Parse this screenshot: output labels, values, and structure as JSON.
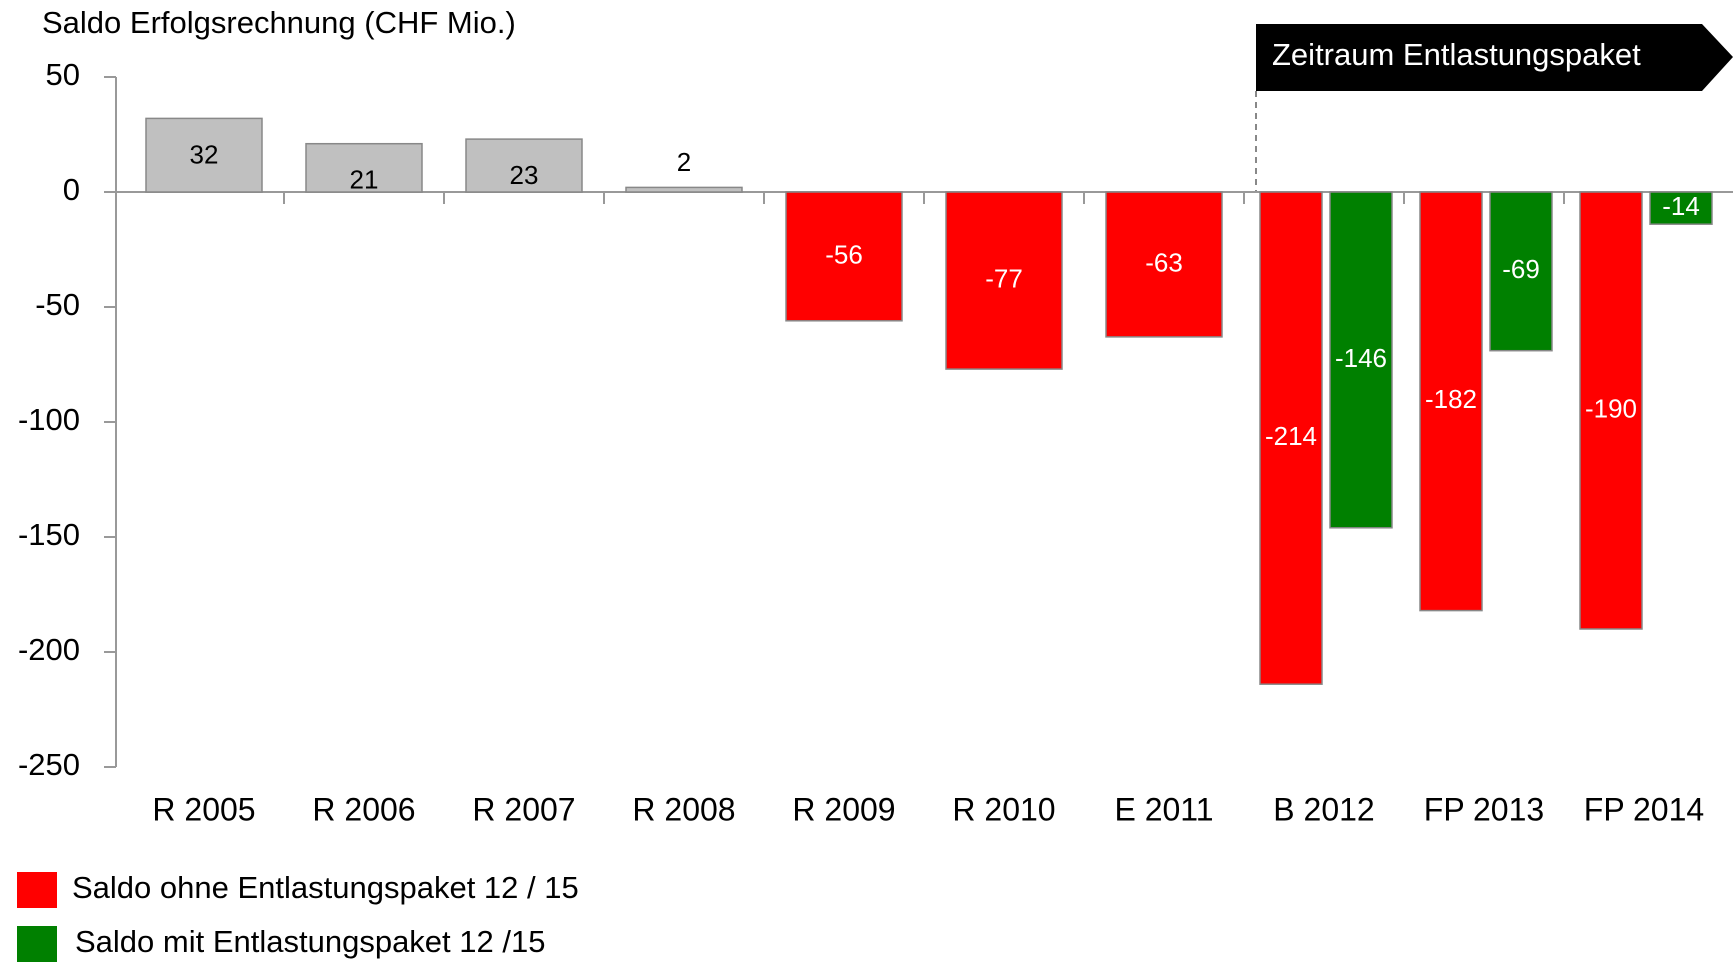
{
  "chart_data": {
    "type": "bar",
    "title": "Saldo Erfolgsrechnung (CHF Mio.)",
    "annotation": "Zeitraum Entlastungspaket",
    "categories": [
      "R 2005",
      "R 2006",
      "R 2007",
      "R 2008",
      "R 2009",
      "R 2010",
      "E 2011",
      "B 2012",
      "FP 2013",
      "FP 2014"
    ],
    "series": [
      {
        "name": "Saldo ohne Entlastungspaket 12 / 15",
        "color": "#ff0000",
        "point_colors": [
          "#c0c0c0",
          "#c0c0c0",
          "#c0c0c0",
          "#c0c0c0",
          "#ff0000",
          "#ff0000",
          "#ff0000",
          "#ff0000",
          "#ff0000",
          "#ff0000"
        ],
        "values": [
          32,
          21,
          23,
          2,
          -56,
          -77,
          -63,
          -214,
          -182,
          -190
        ]
      },
      {
        "name": "Saldo mit Entlastungspaket 12 /15",
        "color": "#008000",
        "values": [
          null,
          null,
          null,
          null,
          null,
          null,
          null,
          -146,
          -69,
          -14
        ]
      }
    ],
    "ylim": [
      -250,
      50
    ],
    "yticks": [
      -250,
      -200,
      -150,
      -100,
      -50,
      0,
      50
    ]
  }
}
